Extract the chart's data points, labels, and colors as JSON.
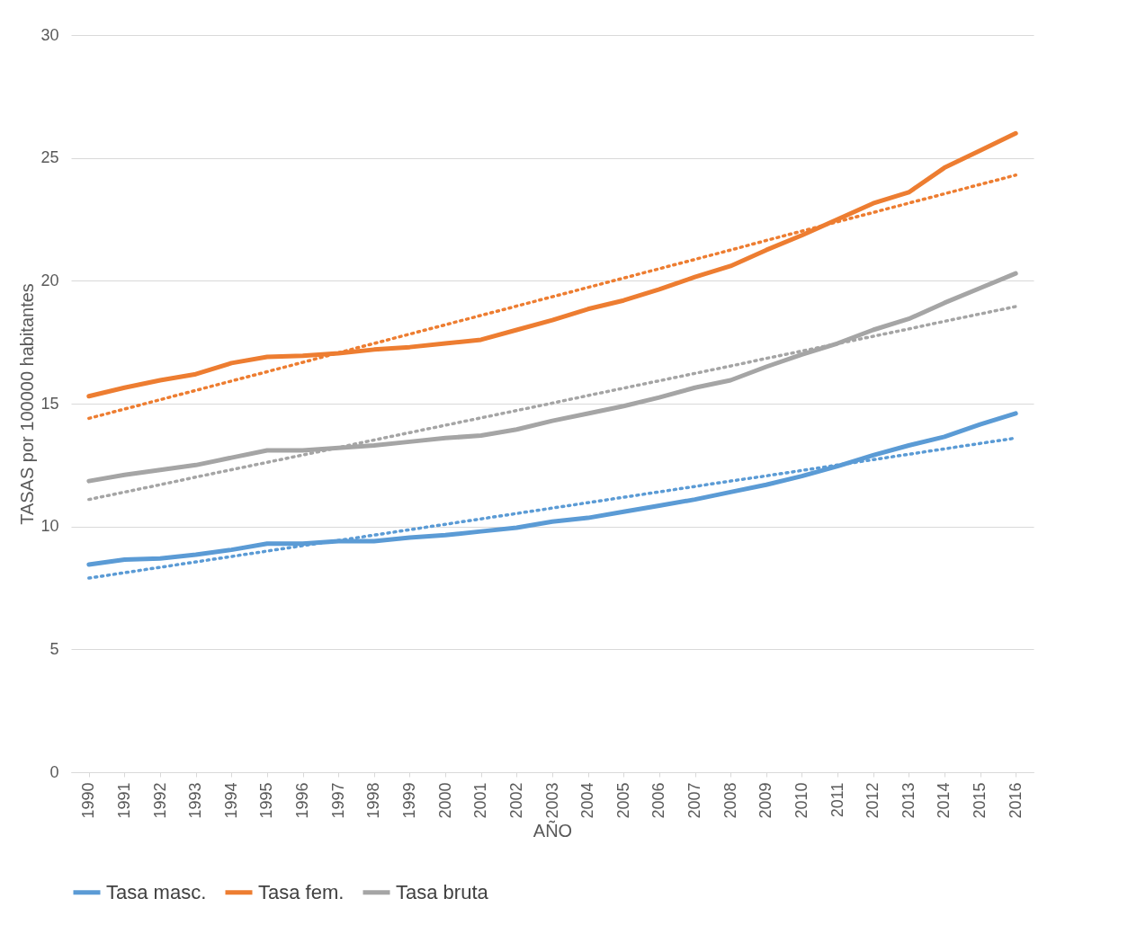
{
  "chart_data": {
    "type": "line",
    "xlabel": "AÑO",
    "ylabel": "TASAS por 100000 habitantes",
    "categories": [
      "1990",
      "1991",
      "1992",
      "1993",
      "1994",
      "1995",
      "1996",
      "1997",
      "1998",
      "1999",
      "2000",
      "2001",
      "2002",
      "2003",
      "2004",
      "2005",
      "2006",
      "2007",
      "2008",
      "2009",
      "2010",
      "2011",
      "2012",
      "2013",
      "2014",
      "2015",
      "2016"
    ],
    "series": [
      {
        "name": "Tasa masc.",
        "color": "#5b9bd5",
        "values": [
          8.45,
          8.65,
          8.7,
          8.85,
          9.05,
          9.3,
          9.3,
          9.4,
          9.4,
          9.55,
          9.65,
          9.8,
          9.95,
          10.2,
          10.35,
          10.6,
          10.85,
          11.1,
          11.4,
          11.7,
          12.05,
          12.45,
          12.9,
          13.3,
          13.65,
          14.15,
          14.6
        ]
      },
      {
        "name": "Tasa fem.",
        "color": "#ed7d31",
        "values": [
          15.3,
          15.65,
          15.95,
          16.2,
          16.65,
          16.9,
          16.95,
          17.05,
          17.2,
          17.3,
          17.45,
          17.6,
          18.0,
          18.4,
          18.85,
          19.2,
          19.65,
          20.15,
          20.6,
          21.25,
          21.85,
          22.5,
          23.15,
          23.6,
          24.6,
          25.3,
          26.0
        ]
      },
      {
        "name": "Tasa bruta",
        "color": "#a5a5a5",
        "values": [
          11.85,
          12.1,
          12.3,
          12.5,
          12.8,
          13.1,
          13.1,
          13.2,
          13.3,
          13.45,
          13.6,
          13.7,
          13.95,
          14.3,
          14.6,
          14.9,
          15.25,
          15.65,
          15.95,
          16.5,
          17.0,
          17.45,
          18.0,
          18.45,
          19.1,
          19.7,
          20.3
        ]
      },
      {
        "color": "#5b9bd5",
        "line_style": "dotted",
        "values": [
          7.9,
          8.12,
          8.34,
          8.56,
          8.78,
          9.0,
          9.22,
          9.43,
          9.65,
          9.87,
          10.09,
          10.31,
          10.53,
          10.75,
          10.97,
          11.19,
          11.41,
          11.63,
          11.85,
          12.06,
          12.28,
          12.5,
          12.72,
          12.94,
          13.16,
          13.38,
          13.6
        ]
      },
      {
        "color": "#ed7d31",
        "line_style": "dotted",
        "values": [
          14.4,
          14.78,
          15.16,
          15.54,
          15.92,
          16.3,
          16.68,
          17.07,
          17.45,
          17.83,
          18.21,
          18.59,
          18.97,
          19.35,
          19.73,
          20.11,
          20.49,
          20.87,
          21.25,
          21.64,
          22.02,
          22.4,
          22.78,
          23.16,
          23.54,
          23.92,
          24.3
        ]
      },
      {
        "color": "#a5a5a5",
        "line_style": "dotted",
        "values": [
          11.1,
          11.4,
          11.7,
          12.01,
          12.31,
          12.61,
          12.91,
          13.21,
          13.52,
          13.82,
          14.12,
          14.42,
          14.72,
          15.02,
          15.33,
          15.63,
          15.93,
          16.23,
          16.53,
          16.84,
          17.14,
          17.44,
          17.74,
          18.04,
          18.35,
          18.65,
          18.95
        ]
      }
    ],
    "ylim": [
      0,
      30
    ],
    "yticks": [
      0,
      5,
      10,
      15,
      20,
      25,
      30
    ],
    "grid": "y",
    "legend": "bottom",
    "line_style": "solid"
  }
}
